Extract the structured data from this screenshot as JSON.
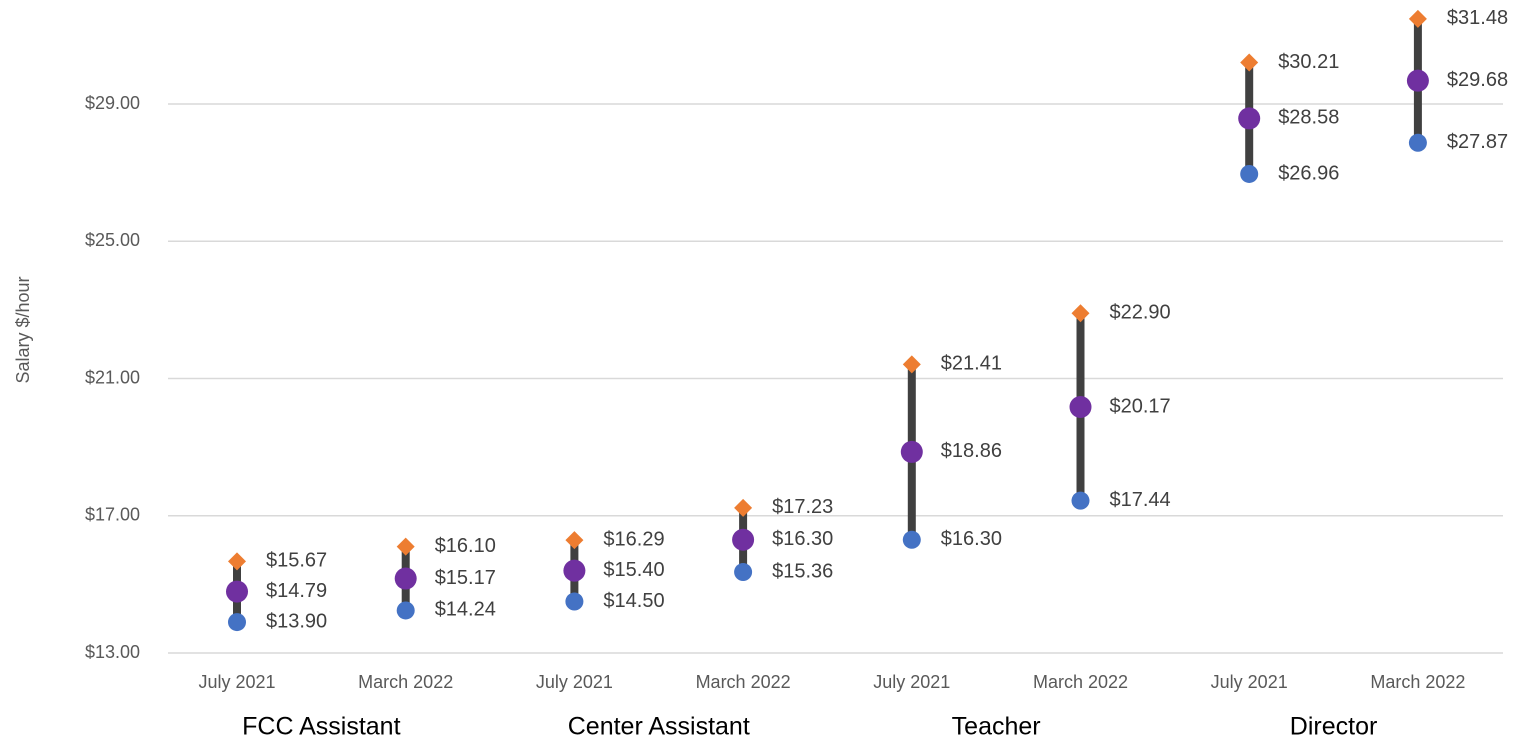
{
  "chart_data": {
    "type": "range",
    "y_label": "Salary $/hour",
    "categories": [
      "July 2021",
      "March 2022",
      "July 2021",
      "March 2022",
      "July 2021",
      "March 2022",
      "July 2021",
      "March 2022"
    ],
    "groups": [
      "FCC Assistant",
      "Center Assistant",
      "Teacher",
      "Director"
    ],
    "series": [
      {
        "color": "#ED7D31",
        "marker": "diamond",
        "values": [
          15.67,
          16.1,
          16.29,
          17.23,
          21.41,
          22.9,
          30.21,
          31.48
        ],
        "value_labels": [
          "$15.67",
          "$16.10",
          "$16.29",
          "$17.23",
          "$21.41",
          "$22.90",
          "$30.21",
          "$31.48"
        ]
      },
      {
        "color": "#7030A0",
        "marker": "circle",
        "values": [
          14.79,
          15.17,
          15.4,
          16.3,
          18.86,
          20.17,
          28.58,
          29.68
        ],
        "value_labels": [
          "$14.79",
          "$15.17",
          "$15.40",
          "$16.30",
          "$18.86",
          "$20.17",
          "$28.58",
          "$29.68"
        ]
      },
      {
        "color": "#4472C4",
        "marker": "circle",
        "values": [
          13.9,
          14.24,
          14.5,
          15.36,
          16.3,
          17.44,
          26.96,
          27.87
        ],
        "value_labels": [
          "$13.90",
          "$14.24",
          "$14.50",
          "$15.36",
          "$16.30",
          "$17.44",
          "$26.96",
          "$27.87"
        ]
      }
    ],
    "range_color": "#404040",
    "ylim": [
      13,
      32
    ],
    "yticks": [
      {
        "value": 13,
        "label": "$13.00"
      },
      {
        "value": 17,
        "label": "$17.00"
      },
      {
        "value": 21,
        "label": "$21.00"
      },
      {
        "value": 25,
        "label": "$25.00"
      },
      {
        "value": 29,
        "label": "$29.00"
      }
    ],
    "grid": true
  }
}
